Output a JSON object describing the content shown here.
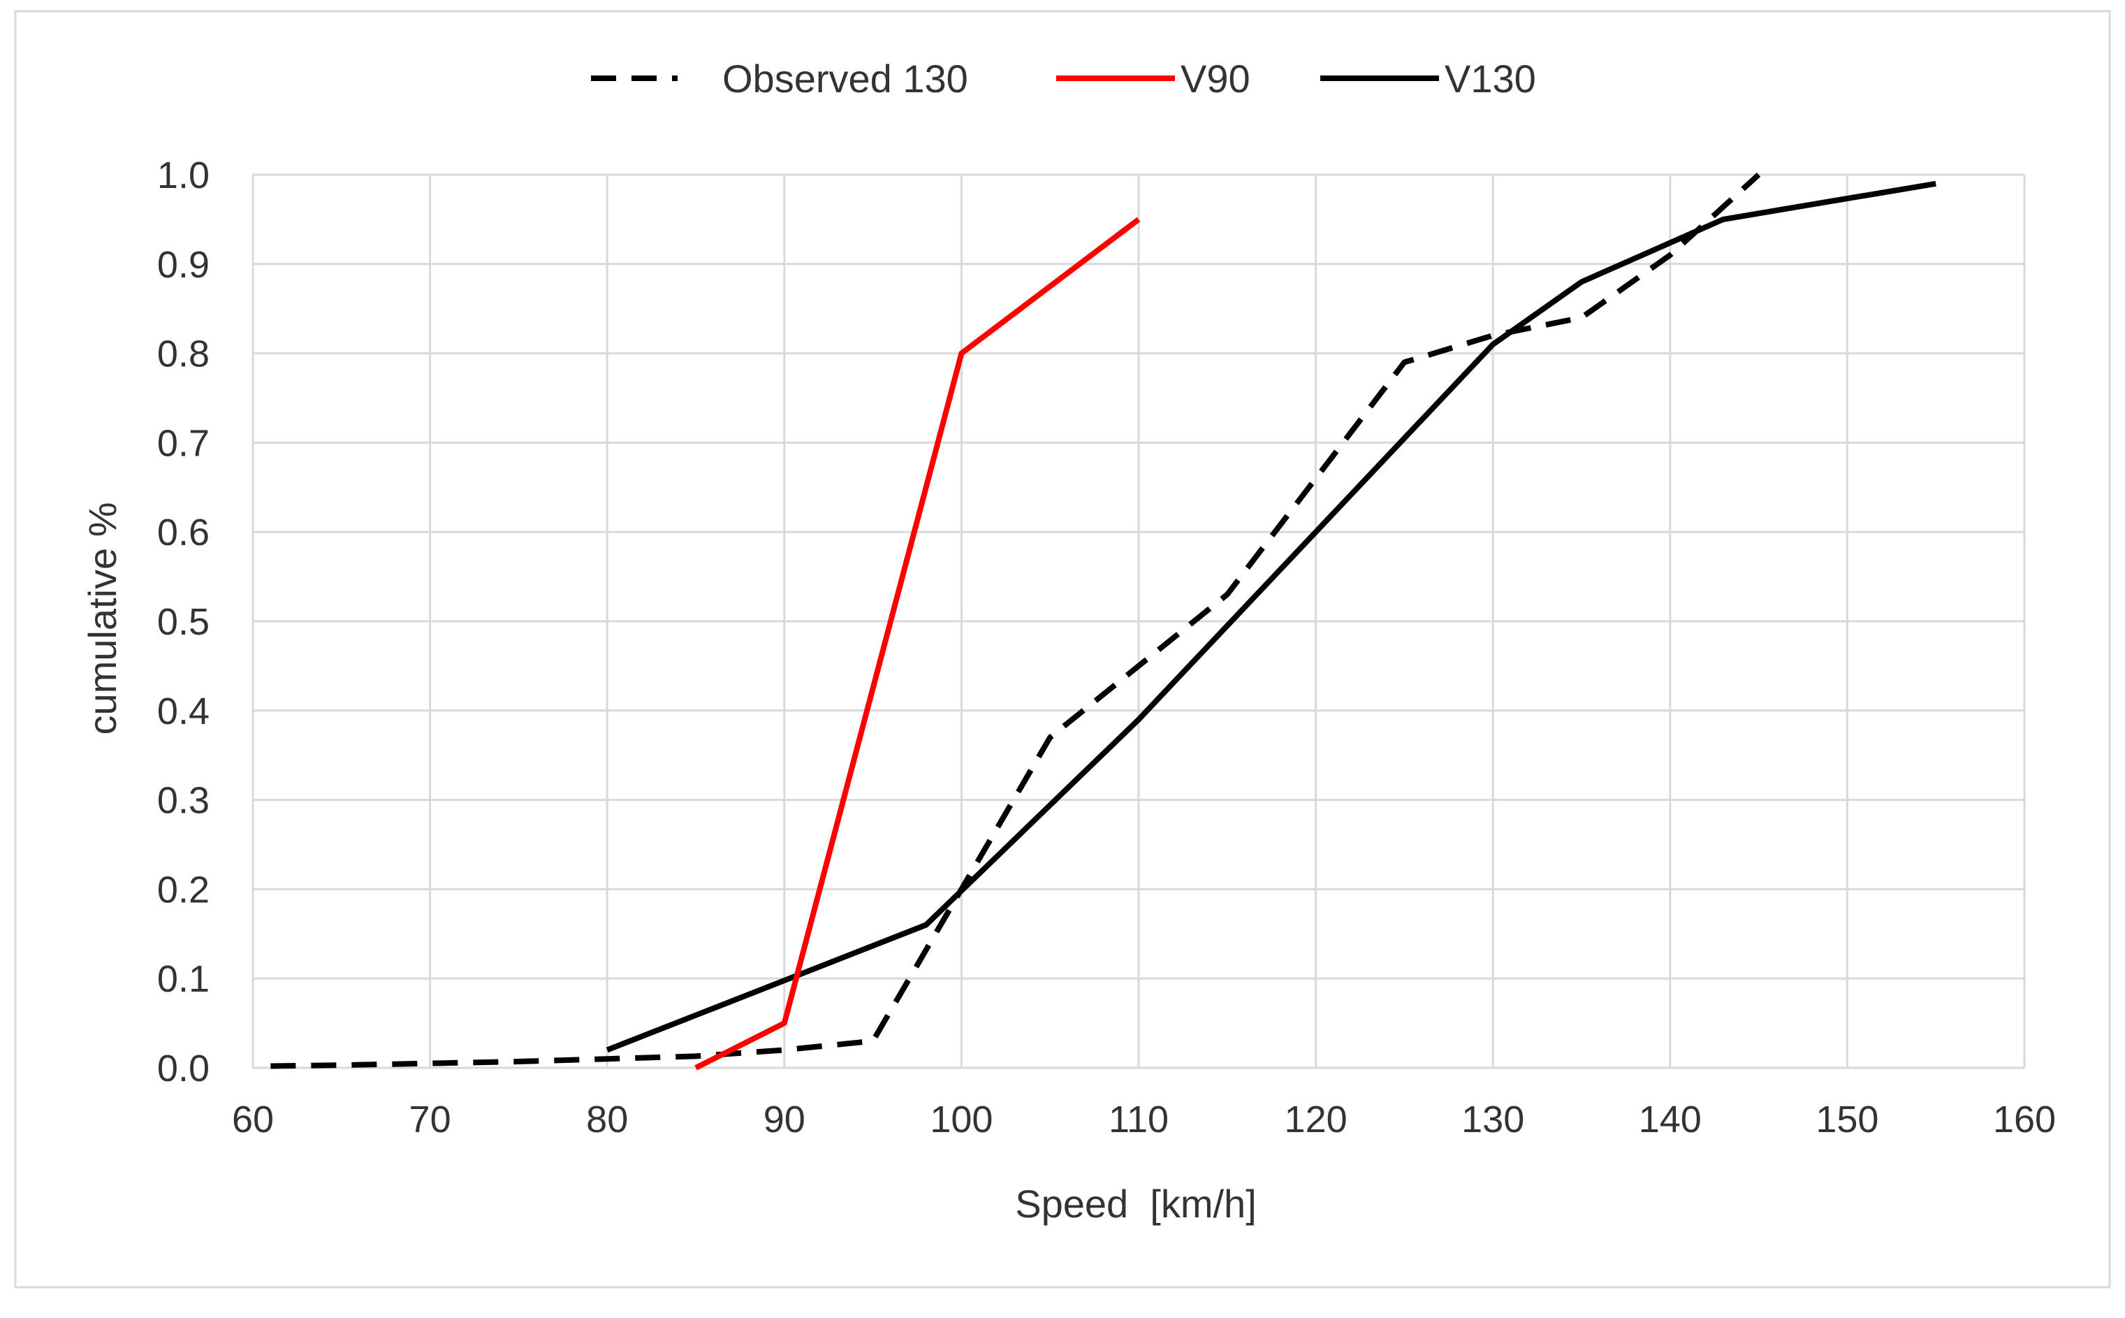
{
  "colors": {
    "background": "#ffffff",
    "frame": "#d9d9d9",
    "grid": "#d9d9d9",
    "text": "#333333",
    "observed_series": "#000000",
    "v90_series": "#ff0000",
    "v130_series": "#000000"
  },
  "chart_data": {
    "type": "line",
    "title": "",
    "xlabel": "Speed  [km/h]",
    "ylabel": "cumulative %",
    "xlim": [
      60,
      160
    ],
    "ylim": [
      0.0,
      1.0
    ],
    "grid": true,
    "legend_position": "top-center",
    "x_ticks": [
      60,
      70,
      80,
      90,
      100,
      110,
      120,
      130,
      140,
      150,
      160
    ],
    "x_tick_labels": [
      "60",
      "70",
      "80",
      "90",
      "100",
      "110",
      "120",
      "130",
      "140",
      "150",
      "160"
    ],
    "y_ticks": [
      0.0,
      0.1,
      0.2,
      0.3,
      0.4,
      0.5,
      0.6,
      0.7,
      0.8,
      0.9,
      1.0
    ],
    "y_tick_labels": [
      "0.0",
      "0.1",
      "0.2",
      "0.3",
      "0.4",
      "0.5",
      "0.6",
      "0.7",
      "0.8",
      "0.9",
      "1.0"
    ],
    "series": [
      {
        "name": "Observed 130",
        "style": "dashed",
        "color": "#000000",
        "x": [
          61,
          65,
          70,
          75,
          80,
          85,
          90,
          95,
          100,
          105,
          110,
          115,
          120,
          125,
          130,
          135,
          140,
          145
        ],
        "y": [
          0.002,
          0.003,
          0.005,
          0.007,
          0.01,
          0.013,
          0.02,
          0.03,
          0.2,
          0.37,
          0.45,
          0.53,
          0.66,
          0.79,
          0.82,
          0.84,
          0.91,
          1.0
        ]
      },
      {
        "name": "V90",
        "style": "solid",
        "color": "#ff0000",
        "x": [
          85,
          90,
          100,
          110
        ],
        "y": [
          0.0,
          0.05,
          0.8,
          0.95
        ]
      },
      {
        "name": "V130",
        "style": "solid",
        "color": "#000000",
        "x": [
          80,
          98,
          110,
          120,
          130,
          135,
          143,
          155
        ],
        "y": [
          0.02,
          0.16,
          0.39,
          0.6,
          0.81,
          0.88,
          0.95,
          0.99
        ]
      }
    ]
  }
}
